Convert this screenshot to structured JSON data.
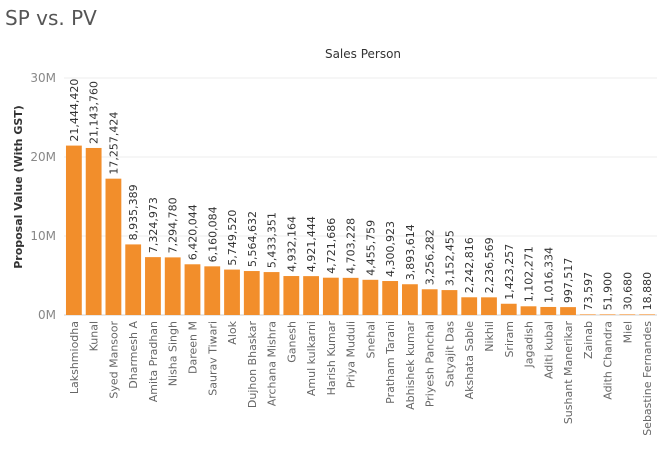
{
  "page": {
    "title": "SP vs. PV"
  },
  "chart_data": {
    "type": "bar",
    "title": "Sales Person",
    "xlabel": "",
    "ylabel": "Proposal Value (With GST)",
    "ylim": [
      0,
      30000000
    ],
    "yticks": [
      {
        "value": 0,
        "label": "0M"
      },
      {
        "value": 10000000,
        "label": "10M"
      },
      {
        "value": 20000000,
        "label": "20M"
      },
      {
        "value": 30000000,
        "label": "30M"
      }
    ],
    "grid": true,
    "bar_color": "#f28e2b",
    "categories": [
      "Lakshmiodha",
      "Kunal",
      "Syed Mansoor",
      "Dharmesh A",
      "Amita Pradhan",
      "Nisha Singh",
      "Dareen M",
      "Saurav Tiwari",
      "Alok",
      "Dujhon Bhaskar",
      "Archana Mishra",
      "Ganesh",
      "Amul kulkarni",
      "Harish Kumar",
      "Priya Muduli",
      "Snehal",
      "Pratham Tarani",
      "Abhishek kumar",
      "Priyesh Panchal",
      "Satyajit Das",
      "Akshata Sable",
      "Nikhil",
      "Sriram",
      "Jagadish",
      "Aditi kubal",
      "Sushant Manerikar",
      "Zainab",
      "Adith Chandra",
      "Miel",
      "Sebastine Fernandes"
    ],
    "values": [
      21444420,
      21143760,
      17257424,
      8935389,
      7324973,
      7294780,
      6420044,
      6160084,
      5749520,
      5564632,
      5433351,
      4932164,
      4921444,
      4721686,
      4703228,
      4455759,
      4300923,
      3893614,
      3256282,
      3152455,
      2242816,
      2236569,
      1423257,
      1102271,
      1016334,
      997517,
      73597,
      51900,
      30680,
      18880
    ],
    "value_labels": [
      "21,444,420",
      "21,143,760",
      "17,257,424",
      "8,935,389",
      "7,324,973",
      "7,294,780",
      "6,420,044",
      "6,160,084",
      "5,749,520",
      "5,564,632",
      "5,433,351",
      "4,932,164",
      "4,921,444",
      "4,721,686",
      "4,703,228",
      "4,455,759",
      "4,300,923",
      "3,893,614",
      "3,256,282",
      "3,152,455",
      "2,242,816",
      "2,236,569",
      "1,423,257",
      "1,102,271",
      "1,016,334",
      "997,517",
      "73,597",
      "51,900",
      "30,680",
      "18,880"
    ]
  }
}
